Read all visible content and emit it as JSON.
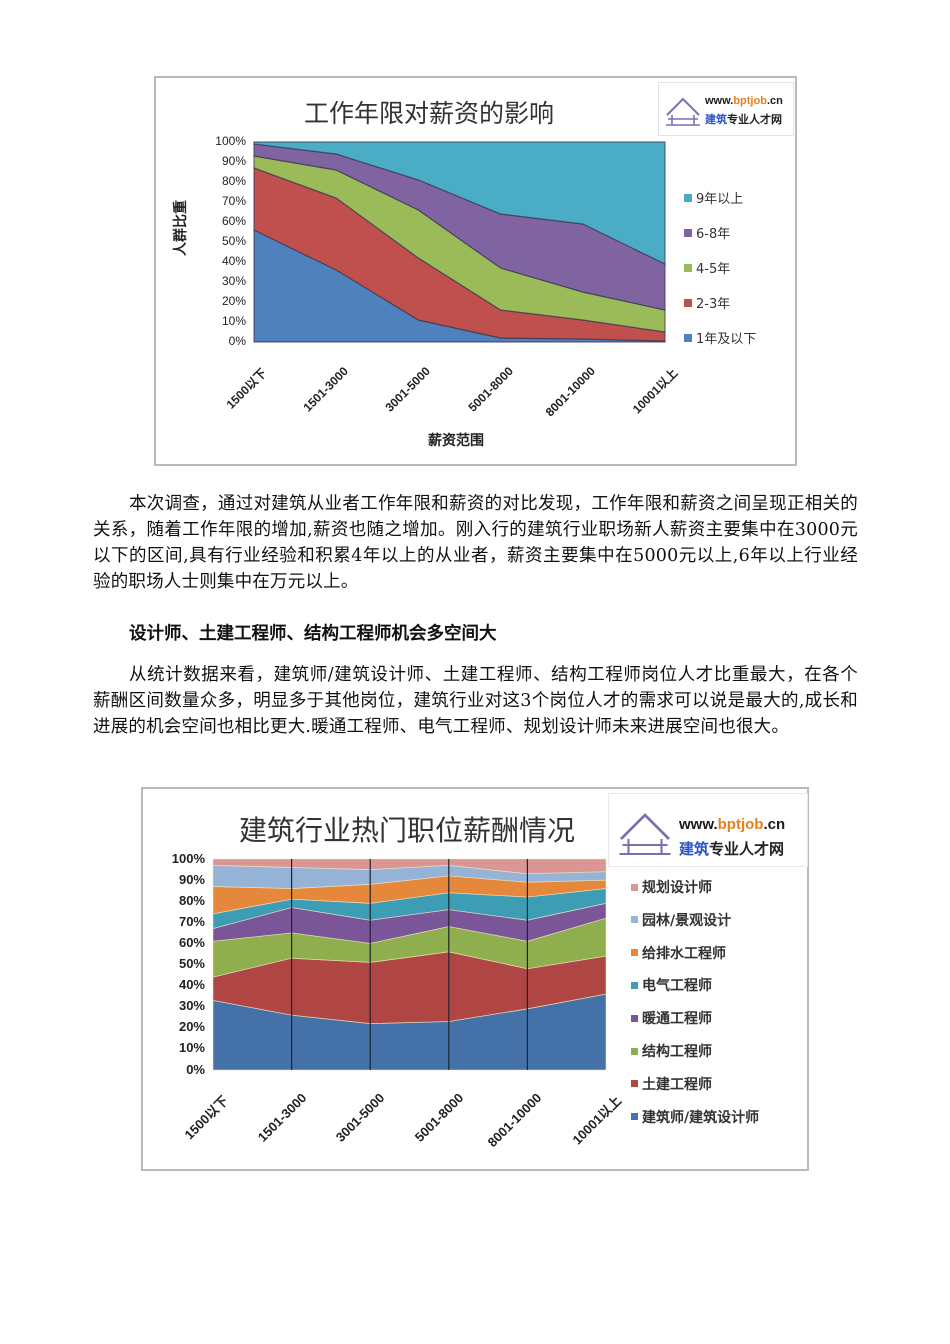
{
  "logo": {
    "url_prefix": "www.",
    "url_highlight": "bptjob",
    "url_suffix": ".cn",
    "sub_blue": "建筑",
    "sub_rest": "专业人才网",
    "icon": "house-roof-icon"
  },
  "chart1": {
    "title": "工作年限对薪资的影响",
    "ylabel": "人群比重",
    "xlabel": "薪资范围",
    "yticks": [
      "100%",
      "90%",
      "80%",
      "70%",
      "60%",
      "50%",
      "40%",
      "30%",
      "20%",
      "10%",
      "0%"
    ],
    "categories": [
      "1500以下",
      "1501-3000",
      "3001-5000",
      "5001-8000",
      "8001-10000",
      "10001以上"
    ],
    "legend": [
      {
        "label": "9年以上",
        "color": "#4bacc6"
      },
      {
        "label": "6-8年",
        "color": "#8064a2"
      },
      {
        "label": "4-5年",
        "color": "#9bbb59"
      },
      {
        "label": "2-3年",
        "color": "#c0504d"
      },
      {
        "label": "1年及以下",
        "color": "#4f81bd"
      }
    ]
  },
  "text": {
    "paragraph1": "本次调查，通过对建筑从业者工作年限和薪资的对比发现，工作年限和薪资之间呈现正相关的关系，随着工作年限的增加,薪资也随之增加。刚入行的建筑行业职场新人薪资主要集中在3000元以下的区间,具有行业经验和积累4年以上的从业者，薪资主要集中在5000元以上,6年以上行业经验的职场人士则集中在万元以上。",
    "heading": "设计师、土建工程师、结构工程师机会多空间大",
    "paragraph2": "从统计数据来看，建筑师/建筑设计师、土建工程师、结构工程师岗位人才比重最大，在各个薪酬区间数量众多，明显多于其他岗位，建筑行业对这3个岗位人才的需求可以说是最大的,成长和进展的机会空间也相比更大.暖通工程师、电气工程师、规划设计师未来进展空间也很大。"
  },
  "chart2": {
    "title": "建筑行业热门职位薪酬情况",
    "yticks": [
      "100%",
      "90%",
      "80%",
      "70%",
      "60%",
      "50%",
      "40%",
      "30%",
      "20%",
      "10%",
      "0%"
    ],
    "categories": [
      "1500以下",
      "1501-3000",
      "3001-5000",
      "5001-8000",
      "8001-10000",
      "10001以上"
    ],
    "legend": [
      {
        "label": "规划设计师",
        "color": "#d99694"
      },
      {
        "label": "园林/景观设计",
        "color": "#95b3d7"
      },
      {
        "label": "给排水工程师",
        "color": "#e6883c"
      },
      {
        "label": "电气工程师",
        "color": "#3d9db5"
      },
      {
        "label": "暖通工程师",
        "color": "#7a5597"
      },
      {
        "label": "结构工程师",
        "color": "#8fae4d"
      },
      {
        "label": "土建工程师",
        "color": "#b04643"
      },
      {
        "label": "建筑师/建筑设计师",
        "color": "#4472a8"
      }
    ]
  },
  "chart_data": [
    {
      "type": "area",
      "stacked": "percent",
      "title": "工作年限对薪资的影响",
      "xlabel": "薪资范围",
      "ylabel": "人群比重",
      "ylim": [
        0,
        100
      ],
      "grid": false,
      "legend_position": "right",
      "categories": [
        "1500以下",
        "1501-3000",
        "3001-5000",
        "5001-8000",
        "8001-10000",
        "10001以上"
      ],
      "series": [
        {
          "name": "1年及以下",
          "color": "#4f81bd",
          "values": [
            56,
            36,
            11,
            2,
            1.5,
            0.5
          ]
        },
        {
          "name": "2-3年",
          "color": "#c0504d",
          "values": [
            31,
            36,
            31,
            14,
            9.5,
            4.5
          ]
        },
        {
          "name": "4-5年",
          "color": "#9bbb59",
          "values": [
            6,
            14,
            24,
            21,
            14,
            11
          ]
        },
        {
          "name": "6-8年",
          "color": "#8064a2",
          "values": [
            6,
            8,
            15,
            27,
            34,
            23
          ]
        },
        {
          "name": "9年以上",
          "color": "#4bacc6",
          "values": [
            1,
            6,
            19,
            36,
            41,
            61
          ]
        }
      ]
    },
    {
      "type": "area",
      "stacked": "percent",
      "title": "建筑行业热门职位薪酬情况",
      "xlabel": "",
      "ylabel": "",
      "ylim": [
        0,
        100
      ],
      "grid": false,
      "legend_position": "right",
      "categories": [
        "1500以下",
        "1501-3000",
        "3001-5000",
        "5001-8000",
        "8001-10000",
        "10001以上"
      ],
      "series": [
        {
          "name": "建筑师/建筑设计师",
          "color": "#4472a8",
          "values": [
            33,
            26,
            22,
            23,
            29,
            36
          ]
        },
        {
          "name": "土建工程师",
          "color": "#b04643",
          "values": [
            11,
            27,
            29,
            33,
            19,
            18
          ]
        },
        {
          "name": "结构工程师",
          "color": "#8fae4d",
          "values": [
            17,
            12,
            9,
            12,
            13,
            18
          ]
        },
        {
          "name": "暖通工程师",
          "color": "#7a5597",
          "values": [
            6,
            12,
            11,
            8,
            10,
            7
          ]
        },
        {
          "name": "电气工程师",
          "color": "#3d9db5",
          "values": [
            7,
            4,
            8,
            8,
            11,
            7
          ]
        },
        {
          "name": "给排水工程师",
          "color": "#e6883c",
          "values": [
            13,
            5,
            9,
            8,
            7,
            4
          ]
        },
        {
          "name": "园林/景观设计",
          "color": "#95b3d7",
          "values": [
            10,
            10,
            7,
            5,
            4,
            4
          ]
        },
        {
          "name": "规划设计师",
          "color": "#d99694",
          "values": [
            3,
            4,
            5,
            3,
            7,
            6
          ]
        }
      ]
    }
  ]
}
